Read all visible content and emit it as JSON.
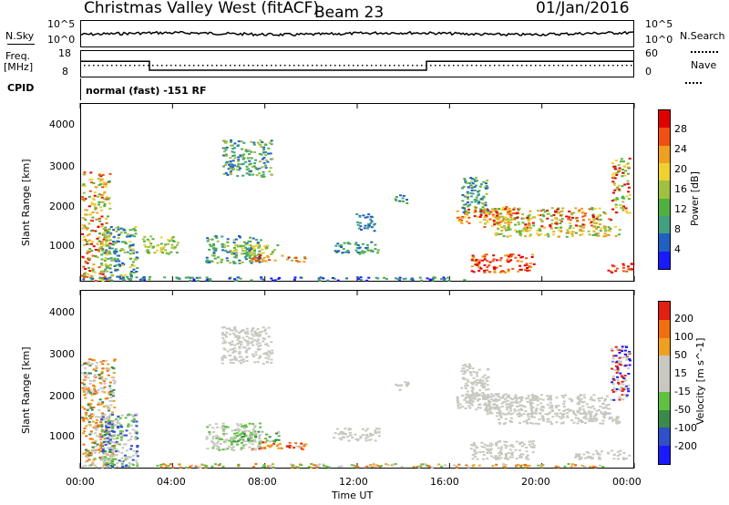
{
  "header": {
    "station": "Christmas Valley West (fitACF)",
    "beam": "Beam 23",
    "date": "01/Jan/2016"
  },
  "side_labels": {
    "nsky": "N.Sky",
    "freq": "Freq.",
    "freq_unit": "[MHz]",
    "cpid": "CPID",
    "nsearch": "N.Search",
    "nave": "Nave"
  },
  "noise_axis_ticks": [
    "10^5",
    "10^0"
  ],
  "freq_axis_ticks": [
    "18",
    "8"
  ],
  "nave_axis_ticks": [
    "60",
    "0"
  ],
  "cpid_text": "normal (fast) -151 RF",
  "colors": {
    "power": [
      "#1a1aff",
      "#2060c0",
      "#40a080",
      "#50b040",
      "#a0c040",
      "#f0d030",
      "#f0a020",
      "#f05010",
      "#e00000"
    ],
    "velocity": [
      "#1a1aff",
      "#3050c8",
      "#3a8a4a",
      "#60c040",
      "#c8c8c0",
      "#c8c8c0",
      "#f0a020",
      "#f07010",
      "#e02010"
    ]
  },
  "chart_data": [
    {
      "type": "line",
      "name": "noise",
      "ylabel": "N.Sky",
      "y_ticks": [
        "10^5",
        "10^0"
      ],
      "x_range": [
        "00:00",
        "24:00"
      ]
    },
    {
      "type": "line",
      "name": "frequency",
      "ylabel": "Freq. [MHz]",
      "y_ticks": [
        18,
        8
      ],
      "x": [
        "00:00",
        "03:00",
        "03:00",
        "15:00",
        "15:00",
        "24:00"
      ],
      "values": [
        14,
        14,
        10.5,
        10.5,
        14,
        14
      ]
    },
    {
      "type": "heatmap",
      "name": "power",
      "ylabel": "Slant Range [km]",
      "y_ticks": [
        1000,
        2000,
        3000,
        4000
      ],
      "colorbar_label": "Power [dB]",
      "colorbar_ticks": [
        4,
        8,
        12,
        16,
        20,
        24,
        28
      ],
      "x_ticks": [
        "00:00",
        "04:00",
        "08:00",
        "12:00",
        "16:00",
        "20:00",
        "00:00"
      ]
    },
    {
      "type": "heatmap",
      "name": "velocity",
      "ylabel": "Slant Range [km]",
      "y_ticks": [
        1000,
        2000,
        3000,
        4000
      ],
      "colorbar_label": "Velocity [m s^-1]",
      "colorbar_ticks": [
        200,
        100,
        50,
        15,
        -15,
        -50,
        -100,
        -200
      ],
      "x_ticks": [
        "00:00",
        "04:00",
        "08:00",
        "12:00",
        "16:00",
        "20:00",
        "00:00"
      ],
      "xlabel": "Time UT"
    }
  ]
}
